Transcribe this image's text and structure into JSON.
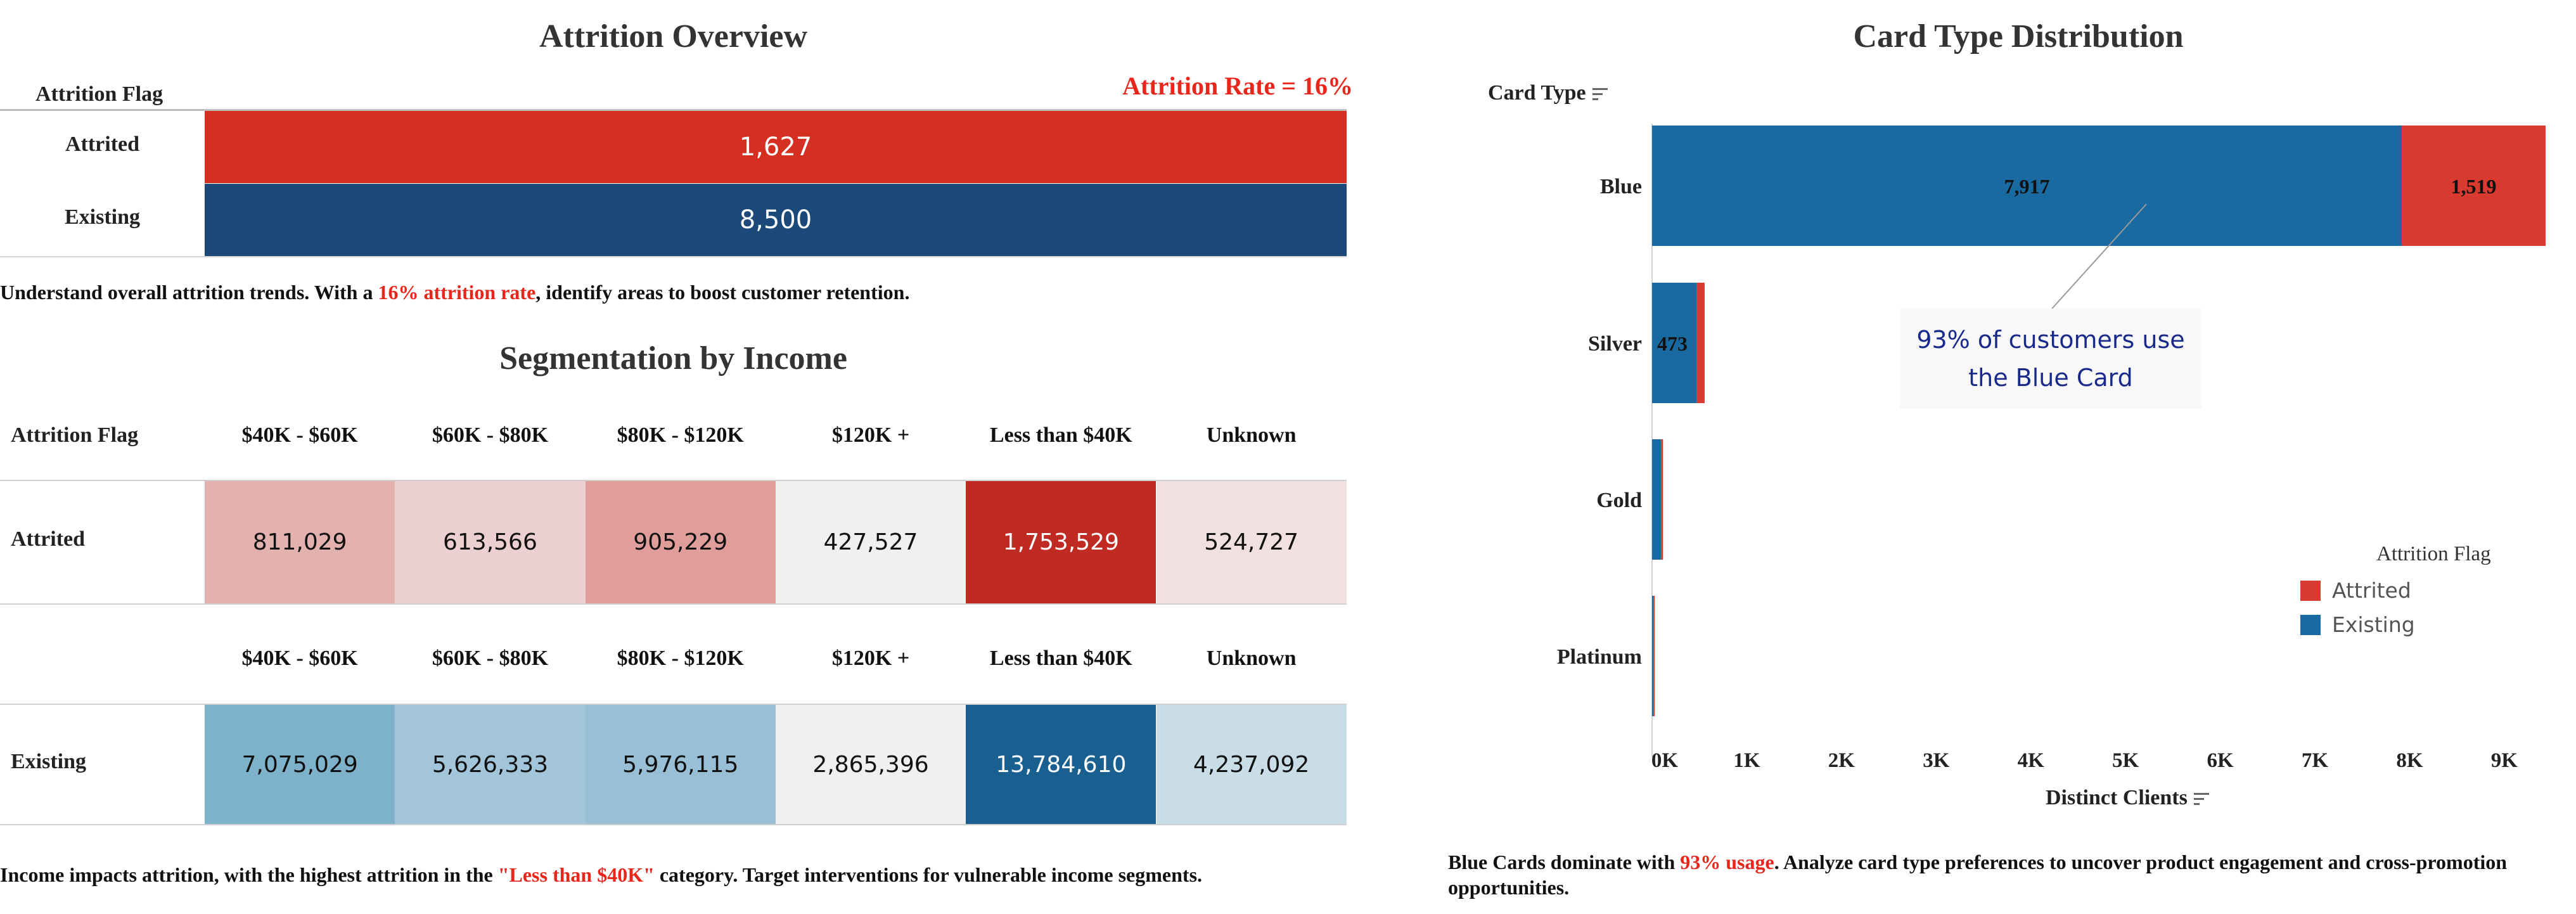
{
  "attrition_overview": {
    "title": "Attrition Overview",
    "axis_label": "Attrition Flag",
    "rate_label": "Attrition Rate = 16%",
    "note_pre": "Understand overall attrition trends. With a ",
    "note_highlight": "16% attrition rate",
    "note_post": ", identify areas to boost customer retention.",
    "colors": {
      "attrited": "#d52f22",
      "existing": "#1b4a7a"
    }
  },
  "income": {
    "title": "Segmentation by Income",
    "axis_label": "Attrition Flag",
    "note_pre": "Income impacts attrition, with the highest attrition in the ",
    "note_highlight": "\"Less than $40K\"",
    "note_post": " category. Target interventions for vulnerable income segments.",
    "attrited_colors": [
      "#e3b1ae",
      "#ecd0d1",
      "#e09e9b",
      "#f0f0f0",
      "#bf2a23",
      "#f1e0df"
    ],
    "existing_colors": [
      "#7eb1ca",
      "#a3c5d9",
      "#98bfd5",
      "#f0f0f0",
      "#195f90",
      "#c8dde5"
    ]
  },
  "card_type": {
    "title": "Card Type Distribution",
    "axis_label": "Card Type",
    "x_label": "Distinct Clients",
    "legend_title": "Attrition Flag",
    "annotation_line1": "93% of  customers use",
    "annotation_line2": "the Blue Card",
    "note_pre": "Blue Cards dominate with ",
    "note_highlight": "93% usage",
    "note_post": ". Analyze card type preferences to uncover product engagement and cross-promotion",
    "note_line2": "opportunities.",
    "colors": {
      "attrited": "#d83a30",
      "existing": "#1a6aa2"
    }
  },
  "chart_data": [
    {
      "type": "bar",
      "orientation": "horizontal",
      "title": "Attrition Overview",
      "ylabel": "Attrition Flag",
      "categories": [
        "Attrited",
        "Existing"
      ],
      "values": [
        1627,
        8500
      ],
      "value_labels": [
        "1,627",
        "8,500"
      ]
    },
    {
      "type": "table",
      "title": "Segmentation by Income",
      "row_header": "Attrition Flag",
      "columns": [
        "$40K - $60K",
        "$60K - $80K",
        "$80K - $120K",
        "$120K +",
        "Less than $40K",
        "Unknown"
      ],
      "rows": [
        {
          "name": "Attrited",
          "values": [
            "811,029",
            "613,566",
            "905,229",
            "427,527",
            "1,753,529",
            "524,727"
          ]
        },
        {
          "name": "Existing",
          "values": [
            "7,075,029",
            "5,626,333",
            "5,976,115",
            "2,865,396",
            "13,784,610",
            "4,237,092"
          ]
        }
      ]
    },
    {
      "type": "bar",
      "orientation": "horizontal",
      "stacked": true,
      "title": "Card Type Distribution",
      "ylabel": "Card Type",
      "xlabel": "Distinct Clients",
      "categories": [
        "Blue",
        "Silver",
        "Gold",
        "Platinum"
      ],
      "series": [
        {
          "name": "Existing",
          "values": [
            7917,
            473,
            95,
            15
          ],
          "labels": [
            "7,917",
            "473",
            "",
            ""
          ]
        },
        {
          "name": "Attrited",
          "values": [
            1519,
            82,
            21,
            5
          ],
          "labels": [
            "1,519",
            "",
            "",
            ""
          ]
        }
      ],
      "xlim": [
        0,
        9500
      ],
      "xticks": [
        0,
        1000,
        2000,
        3000,
        4000,
        5000,
        6000,
        7000,
        8000,
        9000
      ],
      "xtick_labels": [
        "0K",
        "1K",
        "2K",
        "3K",
        "4K",
        "5K",
        "6K",
        "7K",
        "8K",
        "9K"
      ],
      "legend": {
        "title": "Attrition Flag",
        "entries": [
          "Attrited",
          "Existing"
        ],
        "position": "right"
      }
    }
  ]
}
